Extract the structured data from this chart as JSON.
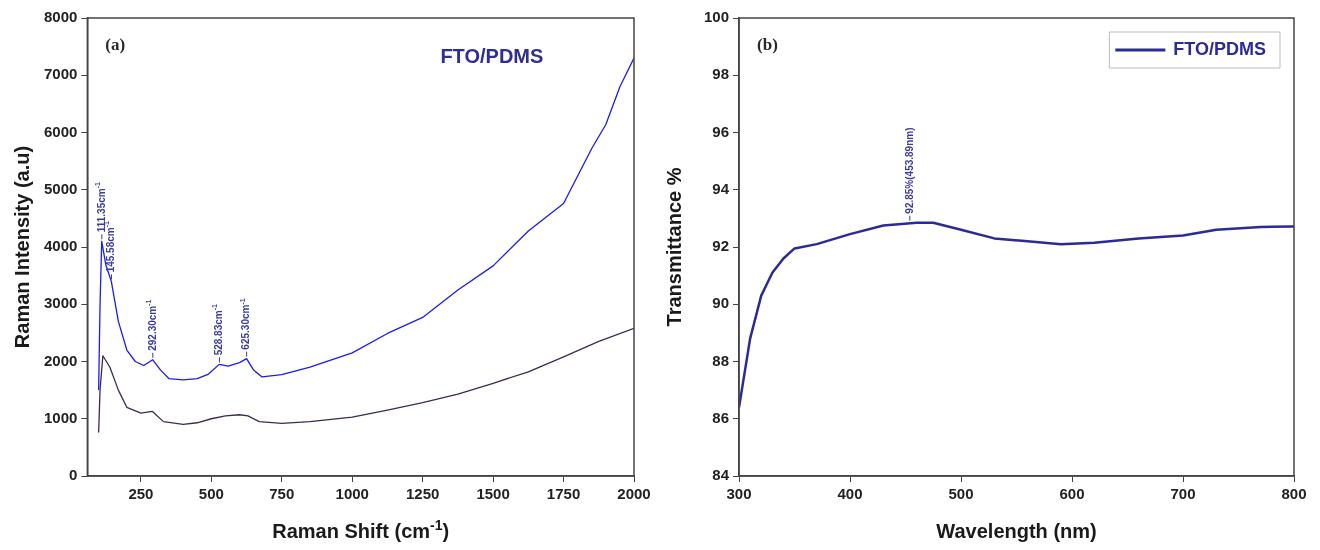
{
  "chart_data": [
    {
      "type": "line",
      "xlabel": "Raman Shift (cm$^{-1}$)",
      "ylabel": "Raman Intensity (a.u)",
      "xlim": [
        60,
        2000
      ],
      "xticks": [
        250,
        500,
        750,
        1000,
        1250,
        1500,
        1750,
        2000
      ],
      "ylim": [
        0,
        8000
      ],
      "yticks": [
        0,
        1000,
        2000,
        3000,
        4000,
        5000,
        6000,
        7000,
        8000
      ],
      "series": [
        {
          "color": "#1a1aff",
          "x": [
            100,
            105,
            111,
            125,
            145,
            170,
            200,
            230,
            260,
            292,
            320,
            350,
            400,
            450,
            490,
            528,
            560,
            600,
            625,
            650,
            680,
            750,
            850,
            1000,
            1125,
            1250,
            1375,
            1500,
            1625,
            1750,
            1850,
            1900,
            1950,
            2000
          ],
          "values": [
            1500,
            3000,
            4100,
            3700,
            3400,
            2700,
            2200,
            2000,
            1930,
            2030,
            1850,
            1700,
            1680,
            1700,
            1780,
            1950,
            1920,
            1980,
            2050,
            1850,
            1730,
            1770,
            1900,
            2150,
            2490,
            2770,
            3250,
            3670,
            4280,
            4760,
            5720,
            6140,
            6800,
            7300
          ]
        },
        {
          "color": "#3d2b4f",
          "x": [
            100,
            105,
            115,
            140,
            170,
            200,
            250,
            290,
            330,
            400,
            450,
            500,
            550,
            600,
            630,
            670,
            750,
            850,
            1000,
            1125,
            1250,
            1375,
            1500,
            1625,
            1750,
            1875,
            2000
          ],
          "values": [
            760,
            1500,
            2100,
            1900,
            1500,
            1200,
            1100,
            1130,
            950,
            900,
            930,
            1000,
            1050,
            1070,
            1050,
            950,
            920,
            950,
            1030,
            1150,
            1280,
            1430,
            1620,
            1820,
            2080,
            2350,
            2580
          ]
        }
      ],
      "annotations": [
        "(a)",
        "FTO/PDMS",
        {
          "text": "111.35cm$^{-1}$",
          "x": 111.35,
          "y": 4100
        },
        {
          "text": "145.58cm$^{-1}$",
          "x": 145.58,
          "y": 3400
        },
        {
          "text": "292.30cm$^{-1}$",
          "x": 292.3,
          "y": 2030
        },
        {
          "text": "528.83cm$^{-1}$",
          "x": 528.83,
          "y": 1950
        },
        {
          "text": "625.30cm$^{-1}$",
          "x": 625.3,
          "y": 2050
        }
      ]
    },
    {
      "type": "line",
      "xlabel": "Wavelength (nm)",
      "ylabel": "Transmittance %",
      "xlim": [
        300,
        800
      ],
      "xticks": [
        300,
        400,
        500,
        600,
        700,
        800
      ],
      "ylim": [
        84,
        100
      ],
      "yticks": [
        84,
        86,
        88,
        90,
        92,
        94,
        96,
        98,
        100
      ],
      "legend": "top right",
      "series": [
        {
          "name": "FTO/PDMS",
          "color": "#2a2a9a",
          "x": [
            300,
            310,
            320,
            330,
            340,
            350,
            370,
            400,
            430,
            460,
            475,
            500,
            530,
            560,
            590,
            620,
            660,
            700,
            730,
            770,
            800
          ],
          "values": [
            86.4,
            88.8,
            90.3,
            91.1,
            91.6,
            91.95,
            92.1,
            92.45,
            92.75,
            92.85,
            92.85,
            92.6,
            92.3,
            92.2,
            92.1,
            92.15,
            92.3,
            92.4,
            92.6,
            92.7,
            92.72
          ]
        }
      ],
      "annotations": [
        "(b)",
        {
          "text": "92.85%(453.89nm)",
          "x": 453.89,
          "y": 92.85
        }
      ]
    }
  ]
}
